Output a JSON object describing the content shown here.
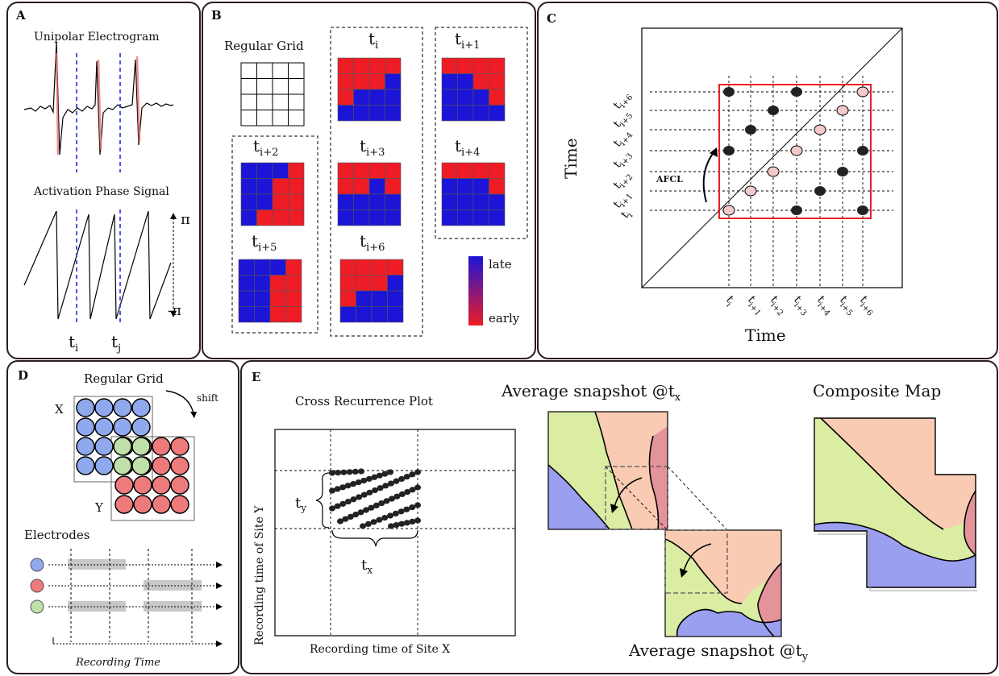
{
  "panels": {
    "a": {
      "label": "A",
      "electrogram_title": "Unipolar Electrogram",
      "phase_title": "Activation Phase Signal",
      "pi_top": "π",
      "pi_bottom": "-π",
      "t_i": "t",
      "t_i_sub": "i",
      "t_j": "t",
      "t_j_sub": "j"
    },
    "b": {
      "label": "B",
      "regular_grid": "Regular Grid",
      "time_base": "t",
      "subs": [
        "i",
        "i+1",
        "i+2",
        "i+3",
        "i+4",
        "i+5",
        "i+6"
      ],
      "legend_late": "late",
      "legend_early": "early"
    },
    "c": {
      "label": "C",
      "y_axis": "Time",
      "x_axis": "Time",
      "afcl": "AFCL",
      "tick_base": "t",
      "tick_subs": [
        "i",
        "i+1",
        "i+2",
        "i+3",
        "i+4",
        "i+5",
        "i+6"
      ]
    },
    "d": {
      "label": "D",
      "regular_grid": "Regular Grid",
      "x_label": "X",
      "y_label": "Y",
      "shift": "shift",
      "electrodes": "Electrodes",
      "recording_time": "Recording Time"
    },
    "e": {
      "label": "E",
      "crp_title": "Cross Recurrence Plot",
      "y_axis": "Recording time of Site Y",
      "x_axis": "Recording time of Site X",
      "ty": "t",
      "ty_sub": "y",
      "tx": "t",
      "tx_sub": "x",
      "snap_x": "Average snapshot @t",
      "snap_x_sub": "x",
      "snap_y": "Average snapshot @t",
      "snap_y_sub": "y",
      "composite": "Composite Map"
    }
  },
  "colors": {
    "red": "#ee1c25",
    "blue": "#1c14d6",
    "electrode_blue": "#8fa8ee",
    "electrode_red": "#ee7b7b",
    "electrode_green": "#bfe0a8",
    "map_green": "#dbeda3",
    "map_peach": "#f9cbb3",
    "map_pink": "#e5939b",
    "map_blue": "#9b9ff0"
  }
}
